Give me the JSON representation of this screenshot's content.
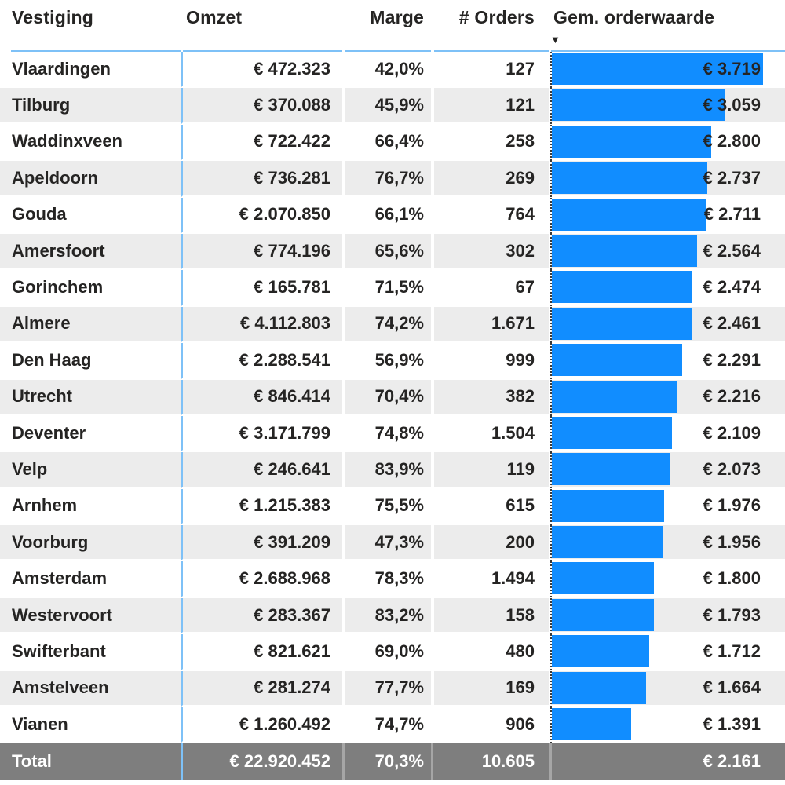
{
  "colors": {
    "bar_blue": "#118DFF",
    "separator_blue": "#7EC1F7",
    "alt_row_gray": "#ECECEC",
    "total_row_bg": "#7E7E7E",
    "body_text": "#252423",
    "total_text": "#FFFFFF"
  },
  "chart_data": {
    "type": "table",
    "columns": [
      {
        "label": "Vestiging",
        "align": "left"
      },
      {
        "label": "Omzet",
        "align": "right"
      },
      {
        "label": "Marge",
        "align": "right"
      },
      {
        "label": "# Orders",
        "align": "right"
      },
      {
        "label": "Gem. orderwaarde",
        "align": "right",
        "has_data_bars": true
      }
    ],
    "sort": {
      "column": "Gem. orderwaarde",
      "direction": "descending",
      "indicator": "▼"
    },
    "bar_settings": {
      "color": "#118DFF",
      "axis_min": 0,
      "axis_max": 3719
    },
    "rows": [
      {
        "vestiging": "Vlaardingen",
        "omzet": "€ 472.323",
        "marge": "42,0%",
        "orders": "127",
        "avg_order_value": "€ 3.719",
        "avg_order_value_num": 3719
      },
      {
        "vestiging": "Tilburg",
        "omzet": "€ 370.088",
        "marge": "45,9%",
        "orders": "121",
        "avg_order_value": "€ 3.059",
        "avg_order_value_num": 3059
      },
      {
        "vestiging": "Waddinxveen",
        "omzet": "€ 722.422",
        "marge": "66,4%",
        "orders": "258",
        "avg_order_value": "€ 2.800",
        "avg_order_value_num": 2800
      },
      {
        "vestiging": "Apeldoorn",
        "omzet": "€ 736.281",
        "marge": "76,7%",
        "orders": "269",
        "avg_order_value": "€ 2.737",
        "avg_order_value_num": 2737
      },
      {
        "vestiging": "Gouda",
        "omzet": "€ 2.070.850",
        "marge": "66,1%",
        "orders": "764",
        "avg_order_value": "€ 2.711",
        "avg_order_value_num": 2711
      },
      {
        "vestiging": "Amersfoort",
        "omzet": "€ 774.196",
        "marge": "65,6%",
        "orders": "302",
        "avg_order_value": "€ 2.564",
        "avg_order_value_num": 2564
      },
      {
        "vestiging": "Gorinchem",
        "omzet": "€ 165.781",
        "marge": "71,5%",
        "orders": "67",
        "avg_order_value": "€ 2.474",
        "avg_order_value_num": 2474
      },
      {
        "vestiging": "Almere",
        "omzet": "€ 4.112.803",
        "marge": "74,2%",
        "orders": "1.671",
        "avg_order_value": "€ 2.461",
        "avg_order_value_num": 2461
      },
      {
        "vestiging": "Den Haag",
        "omzet": "€ 2.288.541",
        "marge": "56,9%",
        "orders": "999",
        "avg_order_value": "€ 2.291",
        "avg_order_value_num": 2291
      },
      {
        "vestiging": "Utrecht",
        "omzet": "€ 846.414",
        "marge": "70,4%",
        "orders": "382",
        "avg_order_value": "€ 2.216",
        "avg_order_value_num": 2216
      },
      {
        "vestiging": "Deventer",
        "omzet": "€ 3.171.799",
        "marge": "74,8%",
        "orders": "1.504",
        "avg_order_value": "€ 2.109",
        "avg_order_value_num": 2109
      },
      {
        "vestiging": "Velp",
        "omzet": "€ 246.641",
        "marge": "83,9%",
        "orders": "119",
        "avg_order_value": "€ 2.073",
        "avg_order_value_num": 2073
      },
      {
        "vestiging": "Arnhem",
        "omzet": "€ 1.215.383",
        "marge": "75,5%",
        "orders": "615",
        "avg_order_value": "€ 1.976",
        "avg_order_value_num": 1976
      },
      {
        "vestiging": "Voorburg",
        "omzet": "€ 391.209",
        "marge": "47,3%",
        "orders": "200",
        "avg_order_value": "€ 1.956",
        "avg_order_value_num": 1956
      },
      {
        "vestiging": "Amsterdam",
        "omzet": "€ 2.688.968",
        "marge": "78,3%",
        "orders": "1.494",
        "avg_order_value": "€ 1.800",
        "avg_order_value_num": 1800
      },
      {
        "vestiging": "Westervoort",
        "omzet": "€ 283.367",
        "marge": "83,2%",
        "orders": "158",
        "avg_order_value": "€ 1.793",
        "avg_order_value_num": 1793
      },
      {
        "vestiging": "Swifterbant",
        "omzet": "€ 821.621",
        "marge": "69,0%",
        "orders": "480",
        "avg_order_value": "€ 1.712",
        "avg_order_value_num": 1712
      },
      {
        "vestiging": "Amstelveen",
        "omzet": "€ 281.274",
        "marge": "77,7%",
        "orders": "169",
        "avg_order_value": "€ 1.664",
        "avg_order_value_num": 1664
      },
      {
        "vestiging": "Vianen",
        "omzet": "€ 1.260.492",
        "marge": "74,7%",
        "orders": "906",
        "avg_order_value": "€ 1.391",
        "avg_order_value_num": 1391
      }
    ],
    "total": {
      "vestiging": "Total",
      "omzet": "€ 22.920.452",
      "marge": "70,3%",
      "orders": "10.605",
      "avg_order_value": "€ 2.161"
    }
  }
}
